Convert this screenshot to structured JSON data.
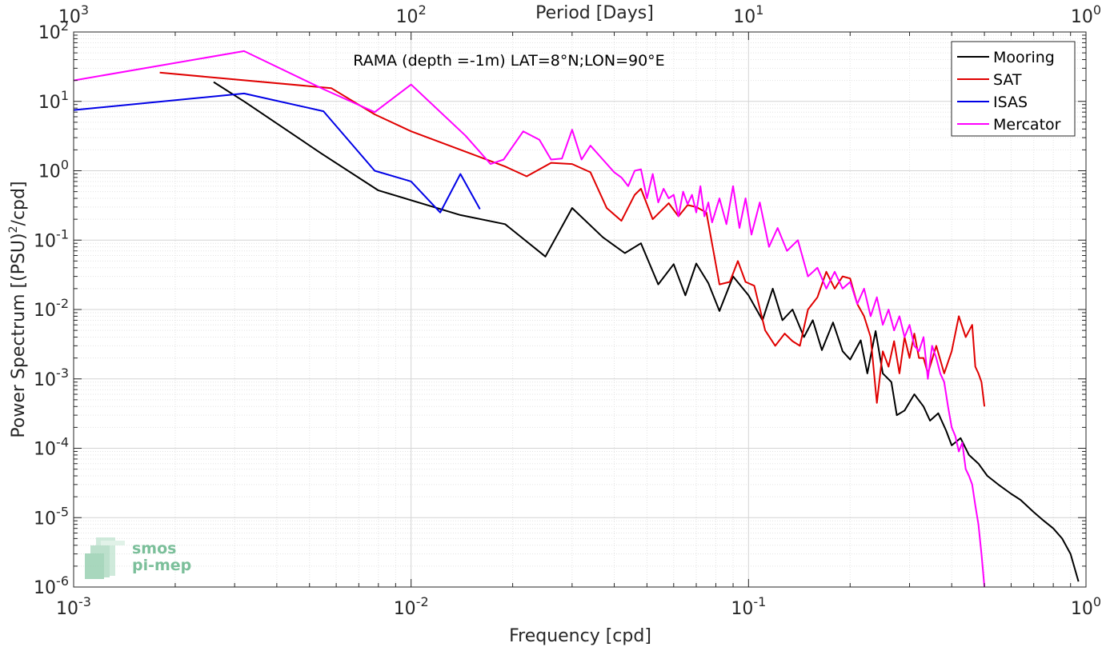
{
  "chart_data": {
    "type": "line",
    "annotation": "RAMA (depth =-1m) LAT=8°N;LON=90°E",
    "xlabel": "Frequency [cpd]",
    "ylabel_main": "Power Spectrum [(PSU)",
    "ylabel_sup": "2",
    "ylabel_tail": "/cpd]",
    "top_xlabel": "Period [Days]",
    "x_scale": "log",
    "y_scale": "log",
    "xlim": [
      0.001,
      1
    ],
    "ylim": [
      1e-06,
      100
    ],
    "grid": true,
    "legend_position": "top-right",
    "x_ticks": [
      {
        "v": 0.001,
        "b": "10",
        "e": "-3"
      },
      {
        "v": 0.01,
        "b": "10",
        "e": "-2"
      },
      {
        "v": 0.1,
        "b": "10",
        "e": "-1"
      },
      {
        "v": 1,
        "b": "10",
        "e": "0"
      }
    ],
    "top_ticks": [
      {
        "v": 0.001,
        "b": "10",
        "e": "3"
      },
      {
        "v": 0.01,
        "b": "10",
        "e": "2"
      },
      {
        "v": 0.1,
        "b": "10",
        "e": "1"
      },
      {
        "v": 1,
        "b": "10",
        "e": "0"
      }
    ],
    "y_ticks": [
      {
        "v": 1e-06,
        "b": "10",
        "e": "-6"
      },
      {
        "v": 1e-05,
        "b": "10",
        "e": "-5"
      },
      {
        "v": 0.0001,
        "b": "10",
        "e": "-4"
      },
      {
        "v": 0.001,
        "b": "10",
        "e": "-3"
      },
      {
        "v": 0.01,
        "b": "10",
        "e": "-2"
      },
      {
        "v": 0.1,
        "b": "10",
        "e": "-1"
      },
      {
        "v": 1,
        "b": "10",
        "e": "0"
      },
      {
        "v": 10,
        "b": "10",
        "e": "1"
      },
      {
        "v": 100,
        "b": "10",
        "e": "2"
      }
    ],
    "series": [
      {
        "name": "Mooring",
        "color": "#000000",
        "points": [
          [
            0.0026,
            19
          ],
          [
            0.0032,
            10
          ],
          [
            0.0054,
            1.8
          ],
          [
            0.008,
            0.52
          ],
          [
            0.014,
            0.23
          ],
          [
            0.019,
            0.17
          ],
          [
            0.025,
            0.058
          ],
          [
            0.03,
            0.29
          ],
          [
            0.037,
            0.11
          ],
          [
            0.043,
            0.065
          ],
          [
            0.048,
            0.09
          ],
          [
            0.054,
            0.023
          ],
          [
            0.06,
            0.045
          ],
          [
            0.065,
            0.016
          ],
          [
            0.07,
            0.046
          ],
          [
            0.076,
            0.024
          ],
          [
            0.082,
            0.0095
          ],
          [
            0.09,
            0.03
          ],
          [
            0.1,
            0.016
          ],
          [
            0.11,
            0.007
          ],
          [
            0.118,
            0.02
          ],
          [
            0.126,
            0.007
          ],
          [
            0.135,
            0.01
          ],
          [
            0.146,
            0.004
          ],
          [
            0.155,
            0.007
          ],
          [
            0.165,
            0.0026
          ],
          [
            0.178,
            0.0065
          ],
          [
            0.19,
            0.0025
          ],
          [
            0.2,
            0.0019
          ],
          [
            0.215,
            0.0036
          ],
          [
            0.225,
            0.0012
          ],
          [
            0.238,
            0.0049
          ],
          [
            0.25,
            0.0012
          ],
          [
            0.265,
            0.0009
          ],
          [
            0.275,
            0.0003
          ],
          [
            0.29,
            0.00035
          ],
          [
            0.31,
            0.0006
          ],
          [
            0.33,
            0.0004
          ],
          [
            0.345,
            0.00025
          ],
          [
            0.365,
            0.00032
          ],
          [
            0.385,
            0.00018
          ],
          [
            0.4,
            0.00011
          ],
          [
            0.425,
            0.00014
          ],
          [
            0.45,
            8e-05
          ],
          [
            0.48,
            6e-05
          ],
          [
            0.51,
            4e-05
          ],
          [
            0.55,
            3e-05
          ],
          [
            0.6,
            2.2e-05
          ],
          [
            0.64,
            1.8e-05
          ],
          [
            0.7,
            1.2e-05
          ],
          [
            0.75,
            9e-06
          ],
          [
            0.8,
            7e-06
          ],
          [
            0.85,
            5e-06
          ],
          [
            0.9,
            3e-06
          ],
          [
            0.95,
            1.2e-06
          ]
        ]
      },
      {
        "name": "SAT",
        "color": "#e00000",
        "points": [
          [
            0.0018,
            26
          ],
          [
            0.0058,
            15.5
          ],
          [
            0.0078,
            6.5
          ],
          [
            0.01,
            3.7
          ],
          [
            0.019,
            1.15
          ],
          [
            0.022,
            0.83
          ],
          [
            0.026,
            1.3
          ],
          [
            0.03,
            1.25
          ],
          [
            0.034,
            0.95
          ],
          [
            0.038,
            0.29
          ],
          [
            0.042,
            0.19
          ],
          [
            0.046,
            0.45
          ],
          [
            0.048,
            0.55
          ],
          [
            0.052,
            0.2
          ],
          [
            0.058,
            0.34
          ],
          [
            0.062,
            0.22
          ],
          [
            0.066,
            0.32
          ],
          [
            0.07,
            0.3
          ],
          [
            0.075,
            0.25
          ],
          [
            0.082,
            0.023
          ],
          [
            0.088,
            0.025
          ],
          [
            0.093,
            0.05
          ],
          [
            0.098,
            0.025
          ],
          [
            0.104,
            0.022
          ],
          [
            0.112,
            0.005
          ],
          [
            0.12,
            0.003
          ],
          [
            0.128,
            0.0045
          ],
          [
            0.135,
            0.0035
          ],
          [
            0.142,
            0.003
          ],
          [
            0.15,
            0.01
          ],
          [
            0.16,
            0.015
          ],
          [
            0.17,
            0.035
          ],
          [
            0.18,
            0.02
          ],
          [
            0.19,
            0.03
          ],
          [
            0.2,
            0.028
          ],
          [
            0.21,
            0.012
          ],
          [
            0.22,
            0.008
          ],
          [
            0.23,
            0.004
          ],
          [
            0.24,
            0.00045
          ],
          [
            0.25,
            0.0025
          ],
          [
            0.26,
            0.0015
          ],
          [
            0.27,
            0.0035
          ],
          [
            0.28,
            0.0012
          ],
          [
            0.29,
            0.004
          ],
          [
            0.3,
            0.002
          ],
          [
            0.31,
            0.0045
          ],
          [
            0.32,
            0.002
          ],
          [
            0.33,
            0.002
          ],
          [
            0.34,
            0.0012
          ],
          [
            0.36,
            0.003
          ],
          [
            0.38,
            0.0012
          ],
          [
            0.4,
            0.0025
          ],
          [
            0.42,
            0.008
          ],
          [
            0.44,
            0.004
          ],
          [
            0.46,
            0.006
          ],
          [
            0.47,
            0.0015
          ],
          [
            0.48,
            0.0012
          ],
          [
            0.49,
            0.0009
          ],
          [
            0.5,
            0.0004
          ]
        ]
      },
      {
        "name": "ISAS",
        "color": "#0000e6",
        "points": [
          [
            0.001,
            7.5
          ],
          [
            0.0032,
            13
          ],
          [
            0.0055,
            7.2
          ],
          [
            0.0078,
            1.0
          ],
          [
            0.01,
            0.7
          ],
          [
            0.0122,
            0.25
          ],
          [
            0.014,
            0.9
          ],
          [
            0.016,
            0.28
          ]
        ]
      },
      {
        "name": "Mercator",
        "color": "#ff00ff",
        "points": [
          [
            0.001,
            20
          ],
          [
            0.0032,
            53
          ],
          [
            0.0055,
            15
          ],
          [
            0.0078,
            7
          ],
          [
            0.01,
            17.5
          ],
          [
            0.0145,
            3.2
          ],
          [
            0.0172,
            1.25
          ],
          [
            0.0188,
            1.45
          ],
          [
            0.0215,
            3.7
          ],
          [
            0.024,
            2.8
          ],
          [
            0.026,
            1.45
          ],
          [
            0.028,
            1.5
          ],
          [
            0.03,
            3.9
          ],
          [
            0.032,
            1.45
          ],
          [
            0.034,
            2.3
          ],
          [
            0.037,
            1.45
          ],
          [
            0.04,
            0.95
          ],
          [
            0.042,
            0.8
          ],
          [
            0.044,
            0.6
          ],
          [
            0.046,
            1.0
          ],
          [
            0.048,
            1.05
          ],
          [
            0.05,
            0.4
          ],
          [
            0.052,
            0.9
          ],
          [
            0.054,
            0.35
          ],
          [
            0.056,
            0.55
          ],
          [
            0.058,
            0.4
          ],
          [
            0.06,
            0.45
          ],
          [
            0.062,
            0.22
          ],
          [
            0.064,
            0.5
          ],
          [
            0.066,
            0.33
          ],
          [
            0.068,
            0.45
          ],
          [
            0.07,
            0.25
          ],
          [
            0.072,
            0.6
          ],
          [
            0.074,
            0.22
          ],
          [
            0.076,
            0.35
          ],
          [
            0.078,
            0.18
          ],
          [
            0.082,
            0.4
          ],
          [
            0.086,
            0.17
          ],
          [
            0.09,
            0.6
          ],
          [
            0.094,
            0.15
          ],
          [
            0.098,
            0.4
          ],
          [
            0.102,
            0.12
          ],
          [
            0.108,
            0.35
          ],
          [
            0.115,
            0.08
          ],
          [
            0.122,
            0.15
          ],
          [
            0.13,
            0.07
          ],
          [
            0.14,
            0.1
          ],
          [
            0.15,
            0.03
          ],
          [
            0.16,
            0.04
          ],
          [
            0.17,
            0.02
          ],
          [
            0.18,
            0.035
          ],
          [
            0.19,
            0.02
          ],
          [
            0.2,
            0.025
          ],
          [
            0.21,
            0.012
          ],
          [
            0.22,
            0.02
          ],
          [
            0.23,
            0.008
          ],
          [
            0.24,
            0.015
          ],
          [
            0.25,
            0.006
          ],
          [
            0.26,
            0.01
          ],
          [
            0.27,
            0.005
          ],
          [
            0.28,
            0.008
          ],
          [
            0.29,
            0.004
          ],
          [
            0.3,
            0.006
          ],
          [
            0.31,
            0.003
          ],
          [
            0.32,
            0.0025
          ],
          [
            0.33,
            0.004
          ],
          [
            0.34,
            0.001
          ],
          [
            0.35,
            0.003
          ],
          [
            0.36,
            0.002
          ],
          [
            0.37,
            0.0012
          ],
          [
            0.38,
            0.0009
          ],
          [
            0.39,
            0.0004
          ],
          [
            0.4,
            0.0002
          ],
          [
            0.41,
            0.00015
          ],
          [
            0.42,
            9e-05
          ],
          [
            0.43,
            0.00012
          ],
          [
            0.44,
            5e-05
          ],
          [
            0.45,
            4e-05
          ],
          [
            0.46,
            3e-05
          ],
          [
            0.47,
            1.5e-05
          ],
          [
            0.48,
            8e-06
          ],
          [
            0.49,
            3e-06
          ],
          [
            0.5,
            1e-06
          ]
        ]
      }
    ]
  },
  "watermark": {
    "line1": "smos",
    "line2": "pi-mep"
  }
}
